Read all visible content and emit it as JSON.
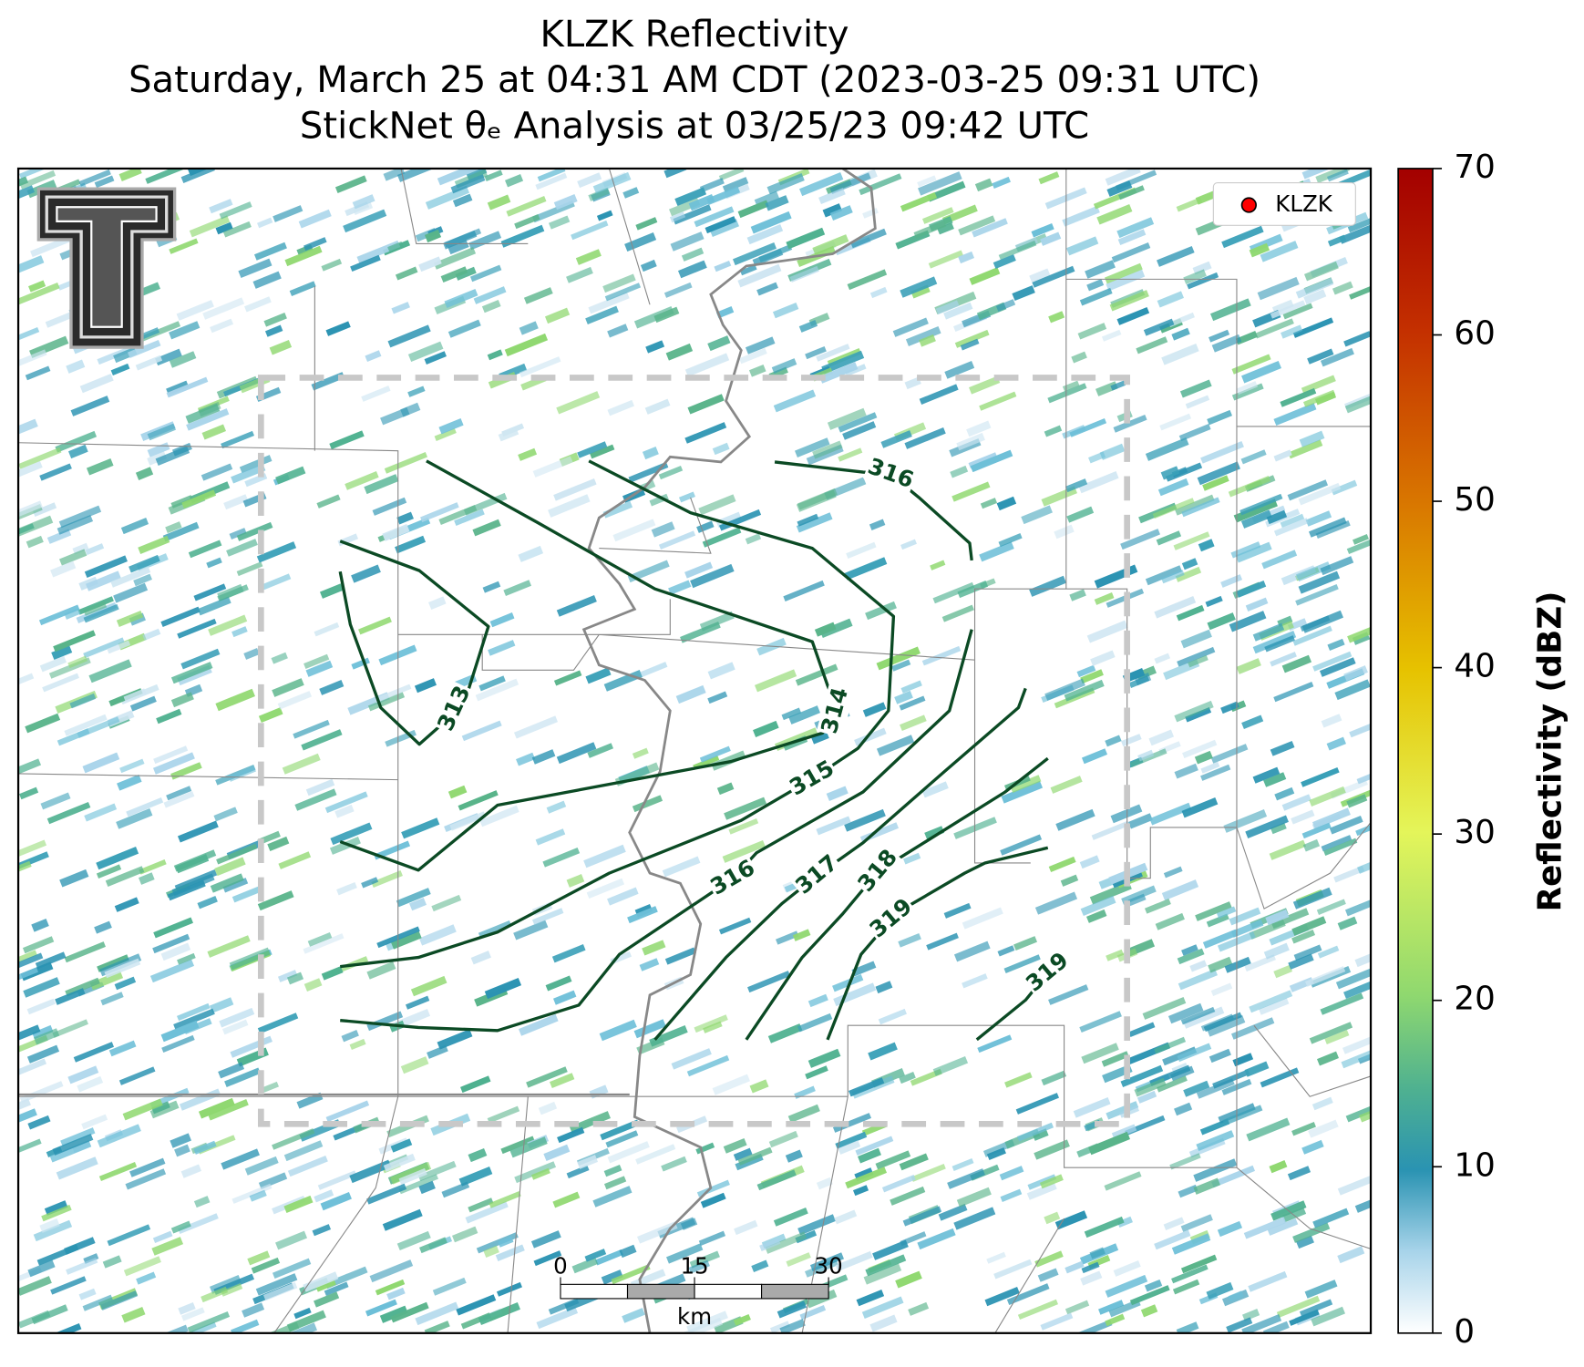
{
  "title": [
    "KLZK Reflectivity",
    "Saturday, March 25 at 04:31 AM CDT (2023-03-25 09:31 UTC)",
    "StickNet θₑ Analysis at 03/25/23 09:42 UTC"
  ],
  "legend": {
    "label": "KLZK",
    "color": "#ff0000"
  },
  "colorbar": {
    "label": "Reflectivity (dBZ)",
    "lim": [
      0,
      70
    ],
    "ticks": [
      0,
      10,
      20,
      30,
      40,
      50,
      60,
      70
    ]
  },
  "contours": [
    {
      "level": 313
    },
    {
      "level": 314
    },
    {
      "level": 315
    },
    {
      "level": 316
    },
    {
      "level": 316
    },
    {
      "level": 317
    },
    {
      "level": 318
    },
    {
      "level": 319
    },
    {
      "level": 319
    }
  ],
  "scale_bar": {
    "ticks": [
      0,
      15,
      30
    ],
    "unit": "km"
  }
}
